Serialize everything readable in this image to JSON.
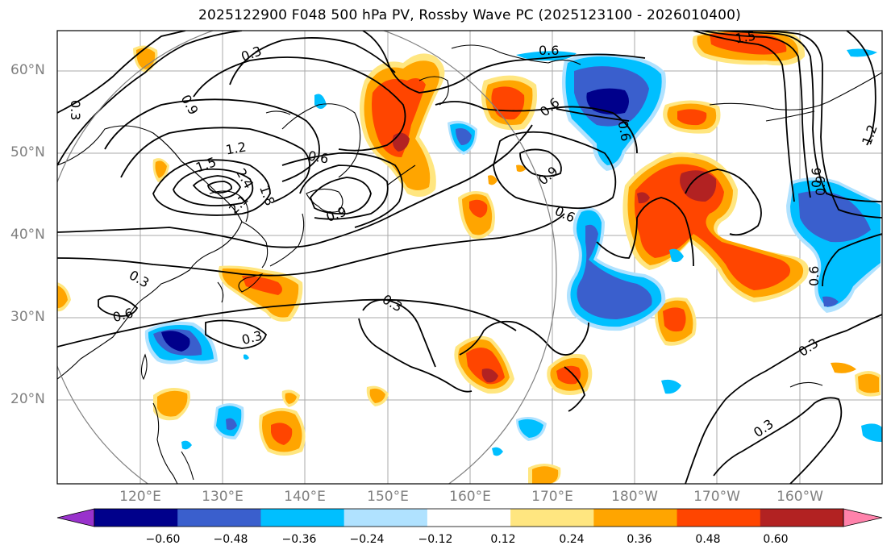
{
  "title": "2025122900 F048 500 hPa PV, Rossby Wave PC (2025123100 - 2026010400)",
  "lat_labels": [
    "60°N",
    "50°N",
    "40°N",
    "30°N",
    "20°N"
  ],
  "lon_labels": [
    "120°E",
    "130°E",
    "140°E",
    "150°E",
    "160°E",
    "170°E",
    "180°W",
    "170°W",
    "160°W"
  ],
  "contour_labels": [
    "0.3",
    "0.6",
    "0.9",
    "1.2",
    "1.5",
    "1.8",
    "2.1",
    "2.4",
    "0.3",
    "0.6",
    "0.9",
    "0.6",
    "0.3",
    "0.3",
    "0.6",
    "0.3",
    "0.3",
    "0.6",
    "0.9",
    "1.2",
    "1.5",
    "0.3",
    "0.6",
    "0.6",
    "0.6",
    "0.9"
  ],
  "colorbar": {
    "ticks": [
      "−0.60",
      "−0.48",
      "−0.36",
      "−0.24",
      "−0.12",
      "0.12",
      "0.24",
      "0.36",
      "0.48",
      "0.60"
    ],
    "colors": [
      "#9932cc",
      "#00008b",
      "#3a5fcd",
      "#00bfff",
      "#b0e2ff",
      "#ffffff",
      "#ffe680",
      "#ffa500",
      "#ff4500",
      "#b22222",
      "#ff82ab"
    ]
  }
}
